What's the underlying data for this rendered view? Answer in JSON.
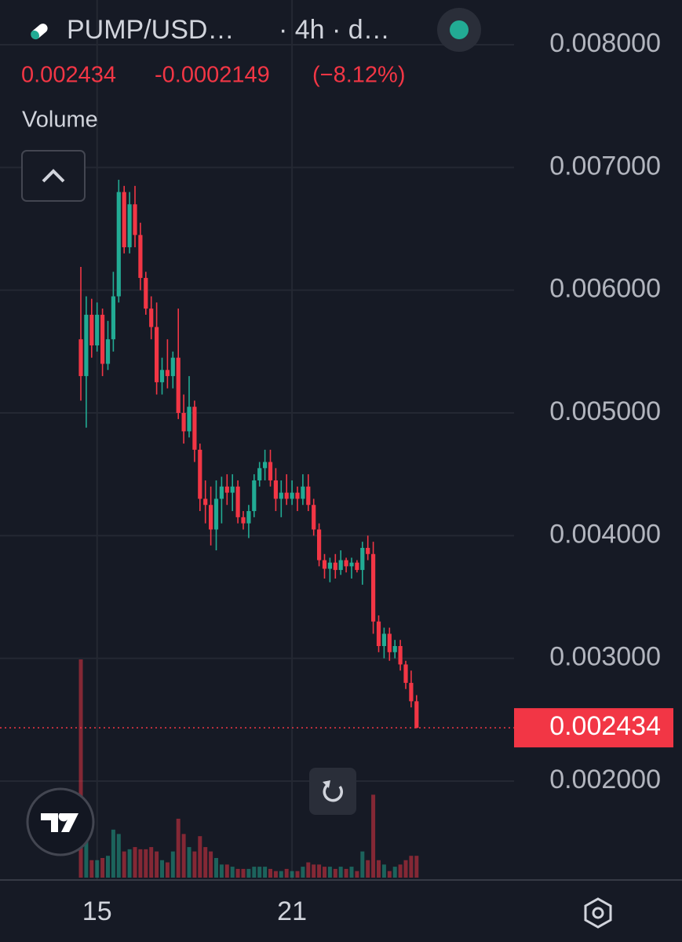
{
  "chart_data": {
    "type": "candlestick",
    "symbol": "PUMP/USD…",
    "interval": "· 4h · d…",
    "last_price": 0.002434,
    "change": -0.0002149,
    "change_percent": {
      "value": -8.12,
      "label": "(−8.12%)"
    },
    "volume_label": "Volume",
    "up_color": "#22ab94",
    "down_color": "#f23645",
    "categories": [
      null,
      null,
      null,
      "15",
      null,
      null,
      null,
      null,
      null,
      null,
      null,
      null,
      null,
      null,
      null,
      null,
      null,
      null,
      null,
      null,
      null,
      null,
      null,
      null,
      null,
      null,
      null,
      null,
      null,
      null,
      null,
      null,
      null,
      null,
      null,
      null,
      null,
      null,
      null,
      "21",
      null,
      null,
      null,
      null,
      null,
      null,
      null,
      null,
      null,
      null,
      null,
      null,
      null,
      null,
      null,
      null,
      null,
      null,
      null,
      null,
      null,
      null,
      null
    ],
    "open": [
      0.0056,
      0.0053,
      0.0058,
      0.00555,
      0.0058,
      0.0054,
      0.0056,
      0.00595,
      0.0068,
      0.00635,
      0.0067,
      0.00645,
      0.0061,
      0.00585,
      0.0057,
      0.00525,
      0.00535,
      0.0053,
      0.00545,
      0.005,
      0.00485,
      0.00505,
      0.0047,
      0.0043,
      0.00425,
      0.00405,
      0.0043,
      0.0044,
      0.00435,
      0.0044,
      0.00415,
      0.0041,
      0.0042,
      0.00445,
      0.00455,
      0.0046,
      0.00445,
      0.0043,
      0.00435,
      0.0043,
      0.00435,
      0.0043,
      0.0044,
      0.00425,
      0.00405,
      0.0038,
      0.00373,
      0.00378,
      0.00372,
      0.0038,
      0.00375,
      0.00378,
      0.00372,
      0.0039,
      0.00385,
      0.0033,
      0.0031,
      0.0032,
      0.00305,
      0.0031,
      0.00295,
      0.0028,
      0.00265
    ],
    "high": [
      0.00619,
      0.00595,
      0.00593,
      0.0059,
      0.00585,
      0.00575,
      0.00615,
      0.0069,
      0.00685,
      0.0068,
      0.00685,
      0.00655,
      0.00615,
      0.00595,
      0.0059,
      0.00545,
      0.0056,
      0.0055,
      0.00585,
      0.00515,
      0.0053,
      0.0051,
      0.00475,
      0.00445,
      0.0044,
      0.00445,
      0.00448,
      0.0045,
      0.0045,
      0.00445,
      0.0042,
      0.00425,
      0.0045,
      0.0046,
      0.0047,
      0.0047,
      0.00455,
      0.00445,
      0.0045,
      0.00445,
      0.0044,
      0.0045,
      0.0045,
      0.0043,
      0.0041,
      0.00385,
      0.00382,
      0.00385,
      0.00388,
      0.00382,
      0.00382,
      0.0038,
      0.00395,
      0.004,
      0.00395,
      0.00335,
      0.00325,
      0.00325,
      0.00315,
      0.00315,
      0.00298,
      0.0029,
      0.0027
    ],
    "low": [
      0.0051,
      0.00488,
      0.00545,
      0.0055,
      0.0053,
      0.00535,
      0.0055,
      0.0059,
      0.0063,
      0.0063,
      0.00635,
      0.006,
      0.0058,
      0.0056,
      0.00515,
      0.00515,
      0.0052,
      0.0052,
      0.00495,
      0.00475,
      0.0048,
      0.0046,
      0.0042,
      0.0041,
      0.00392,
      0.00388,
      0.0041,
      0.00425,
      0.0042,
      0.0041,
      0.00405,
      0.00398,
      0.00415,
      0.0044,
      0.00445,
      0.0044,
      0.0042,
      0.00415,
      0.00425,
      0.00425,
      0.0042,
      0.00425,
      0.0042,
      0.004,
      0.00375,
      0.00365,
      0.00362,
      0.00365,
      0.00368,
      0.0037,
      0.00365,
      0.0037,
      0.0036,
      0.0038,
      0.0032,
      0.00305,
      0.003,
      0.00298,
      0.003,
      0.0029,
      0.00275,
      0.0026,
      0.00243
    ],
    "close": [
      0.0053,
      0.0058,
      0.00555,
      0.0058,
      0.0054,
      0.0056,
      0.00595,
      0.0068,
      0.00635,
      0.0067,
      0.00645,
      0.0061,
      0.00585,
      0.0057,
      0.00525,
      0.00535,
      0.0053,
      0.00545,
      0.005,
      0.00485,
      0.00505,
      0.0047,
      0.0043,
      0.00425,
      0.00405,
      0.0043,
      0.0044,
      0.00435,
      0.0044,
      0.00415,
      0.0041,
      0.0042,
      0.00445,
      0.00455,
      0.0046,
      0.00445,
      0.0043,
      0.00435,
      0.0043,
      0.00435,
      0.0043,
      0.0044,
      0.00425,
      0.00405,
      0.0038,
      0.00373,
      0.00378,
      0.00372,
      0.0038,
      0.00375,
      0.00378,
      0.00372,
      0.0039,
      0.00385,
      0.0033,
      0.0031,
      0.0032,
      0.00305,
      0.0031,
      0.00295,
      0.0028,
      0.00265,
      0.002434
    ],
    "volume": [
      100,
      20,
      8,
      8,
      9,
      10,
      22,
      20,
      12,
      13,
      14,
      13,
      13,
      14,
      12,
      8,
      7,
      12,
      27,
      20,
      14,
      12,
      19,
      14,
      12,
      9,
      6,
      6,
      5,
      4,
      4,
      4,
      5,
      5,
      5,
      4,
      3,
      3,
      4,
      3,
      3,
      5,
      7,
      6,
      6,
      5,
      5,
      4,
      5,
      4,
      5,
      3,
      12,
      8,
      38,
      8,
      6,
      3,
      5,
      6,
      8,
      10,
      10
    ],
    "ylim": [
      0.0012,
      0.008365
    ],
    "yticks": [
      {
        "value": 0.008,
        "label": "0.008000"
      },
      {
        "value": 0.007,
        "label": "0.007000"
      },
      {
        "value": 0.006,
        "label": "0.006000"
      },
      {
        "value": 0.005,
        "label": "0.005000"
      },
      {
        "value": 0.004,
        "label": "0.004000"
      },
      {
        "value": 0.003,
        "label": "0.003000"
      },
      {
        "value": 0.002,
        "label": "0.002000"
      }
    ],
    "last_price_label": "0.002434",
    "grid": true
  }
}
